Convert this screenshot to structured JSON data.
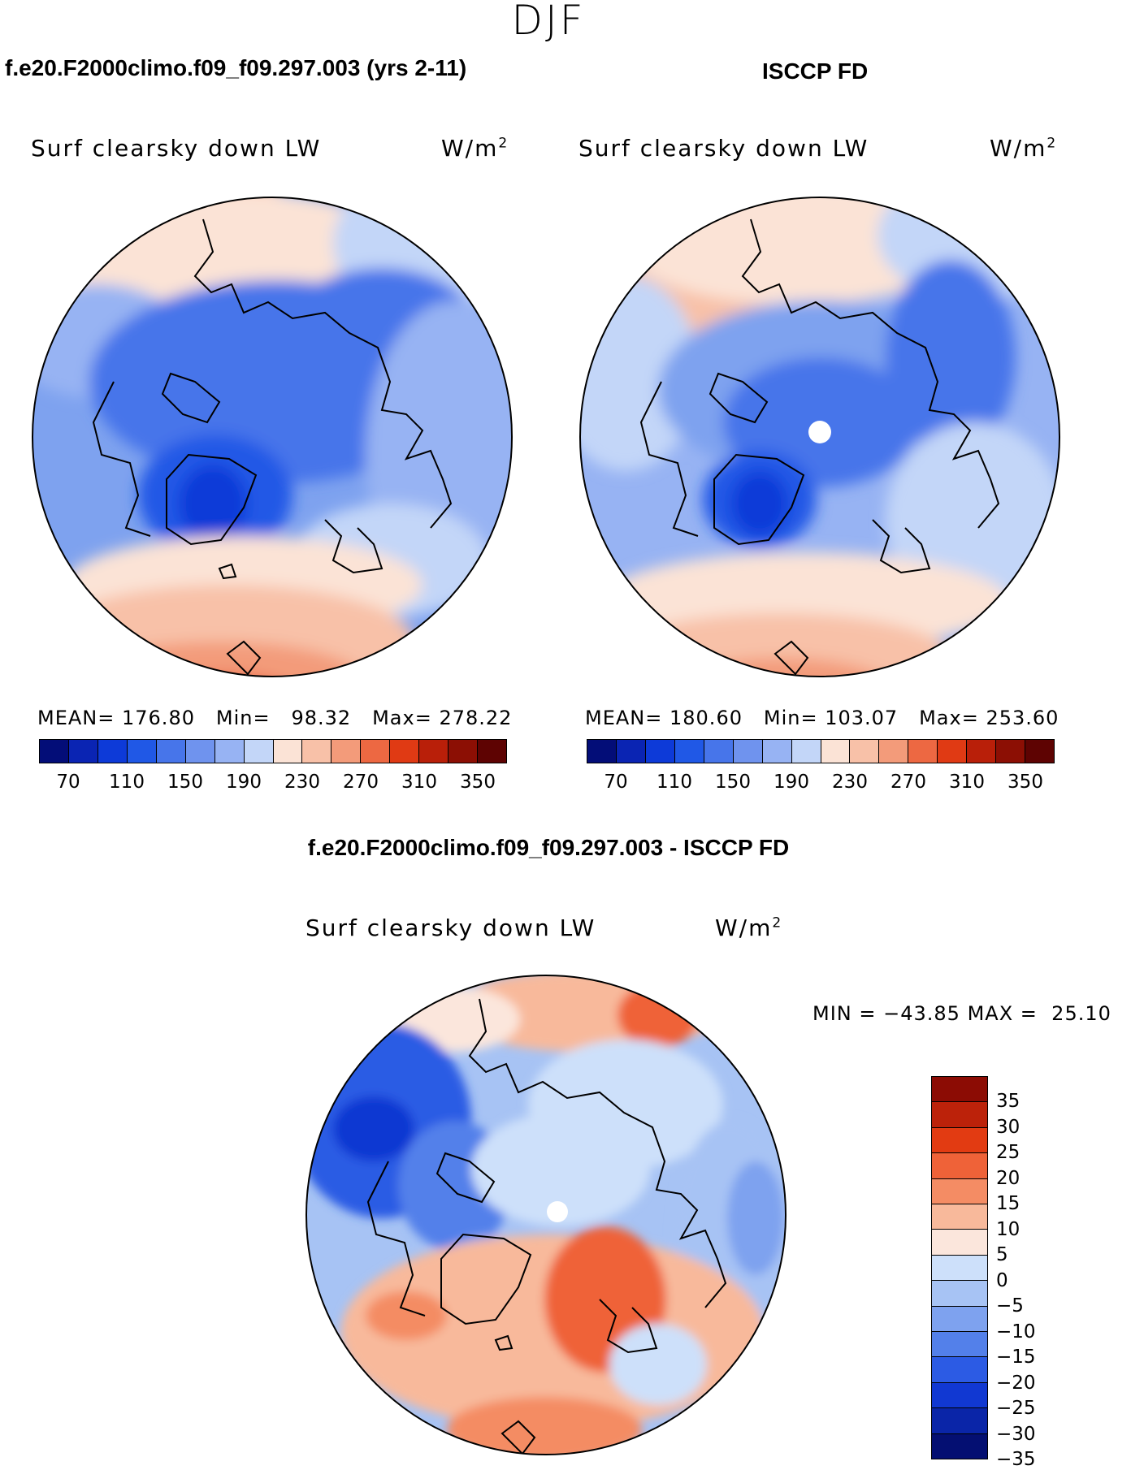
{
  "season": "DJF",
  "panel_model": {
    "title": "f.e20.F2000climo.f09_f09.297.003 (yrs 2-11)",
    "variable": "Surf clearsky down LW",
    "units_base": "W/m",
    "units_exp": "2",
    "mean_label": "MEAN=",
    "mean": "176.80",
    "min_label": "Min=",
    "min": "98.32",
    "max_label": "Max=",
    "max": "278.22"
  },
  "panel_obs": {
    "title": "ISCCP FD",
    "variable": "Surf clearsky down LW",
    "units_base": "W/m",
    "units_exp": "2",
    "mean_label": "MEAN=",
    "mean": "180.60",
    "min_label": "Min=",
    "min": "103.07",
    "max_label": "Max=",
    "max": "253.60"
  },
  "panel_diff": {
    "title": "f.e20.F2000climo.f09_f09.297.003 - ISCCP FD",
    "variable": "Surf clearsky down LW",
    "units_base": "W/m",
    "units_exp": "2",
    "min_label": "MIN =",
    "min": "−43.85",
    "max_label": "MAX =",
    "max": "25.10"
  },
  "abs_colorbar": {
    "colors": [
      "#030d78",
      "#0a24b3",
      "#0d3ad8",
      "#2058e6",
      "#4775ea",
      "#6f93ee",
      "#97b3f3",
      "#c3d6f8",
      "#fbe3d6",
      "#f8c1a8",
      "#f39b7a",
      "#ed6842",
      "#e03a14",
      "#b91f09",
      "#8c0f04",
      "#5e0302"
    ],
    "tick_labels": [
      "70",
      "110",
      "150",
      "190",
      "230",
      "270",
      "310",
      "350"
    ]
  },
  "diff_colorbar": {
    "colors": [
      "#8c0c04",
      "#bc220a",
      "#e23b12",
      "#ef6238",
      "#f48c64",
      "#f8b99b",
      "#fbe6dc",
      "#cde0fa",
      "#a7c3f4",
      "#7ea2ef",
      "#5380ea",
      "#2c5be4",
      "#1138d2",
      "#0a25a8",
      "#040f72"
    ],
    "tick_labels": [
      "35",
      "30",
      "25",
      "20",
      "15",
      "10",
      "5",
      "0",
      "−5",
      "−10",
      "−15",
      "−20",
      "−25",
      "−30",
      "−35"
    ]
  },
  "chart_data": [
    {
      "type": "heatmap",
      "title": "f.e20.F2000climo.f09_f09.297.003 (yrs 2-11)",
      "variable": "Surf clearsky down LW",
      "units": "W/m2",
      "projection": "north-polar stereographic",
      "stats": {
        "mean": 176.8,
        "min": 98.32,
        "max": 278.22
      },
      "contour_levels": [
        70,
        90,
        110,
        130,
        150,
        170,
        190,
        210,
        230,
        250,
        270,
        290,
        310,
        330,
        350
      ]
    },
    {
      "type": "heatmap",
      "title": "ISCCP FD",
      "variable": "Surf clearsky down LW",
      "units": "W/m2",
      "projection": "north-polar stereographic",
      "stats": {
        "mean": 180.6,
        "min": 103.07,
        "max": 253.6
      },
      "contour_levels": [
        70,
        90,
        110,
        130,
        150,
        170,
        190,
        210,
        230,
        250,
        270,
        290,
        310,
        330,
        350
      ]
    },
    {
      "type": "heatmap",
      "title": "f.e20.F2000climo.f09_f09.297.003 - ISCCP FD",
      "variable": "Surf clearsky down LW",
      "units": "W/m2",
      "projection": "north-polar stereographic",
      "stats": {
        "min": -43.85,
        "max": 25.1
      },
      "contour_levels": [
        -35,
        -30,
        -25,
        -20,
        -15,
        -10,
        -5,
        0,
        5,
        10,
        15,
        20,
        25,
        30,
        35
      ]
    }
  ]
}
